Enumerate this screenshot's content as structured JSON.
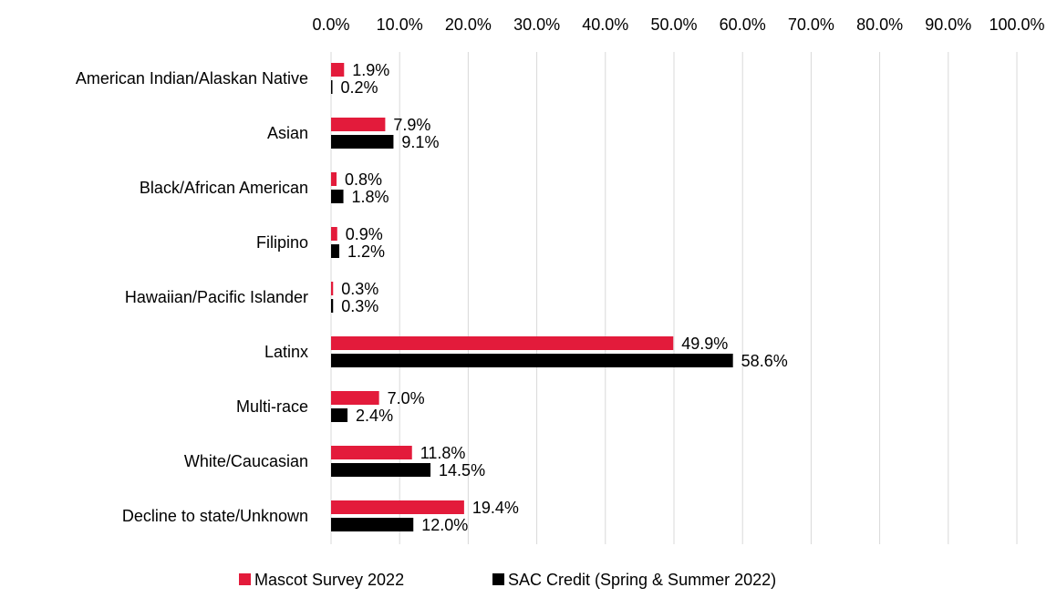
{
  "chart_data": {
    "type": "bar",
    "orientation": "horizontal",
    "categories": [
      "American Indian/Alaskan Native",
      "Asian",
      "Black/African American",
      "Filipino",
      "Hawaiian/Pacific Islander",
      "Latinx",
      "Multi-race",
      "White/Caucasian",
      "Decline to state/Unknown"
    ],
    "series": [
      {
        "name": "Mascot Survey 2022",
        "color": "#e31b3b",
        "values": [
          1.9,
          7.9,
          0.8,
          0.9,
          0.3,
          49.9,
          7.0,
          11.8,
          19.4
        ],
        "value_labels": [
          "1.9%",
          "7.9%",
          "0.8%",
          "0.9%",
          "0.3%",
          "49.9%",
          "7.0%",
          "11.8%",
          "19.4%"
        ]
      },
      {
        "name": "SAC Credit (Spring & Summer 2022)",
        "color": "#000000",
        "values": [
          0.2,
          9.1,
          1.8,
          1.2,
          0.3,
          58.6,
          2.4,
          14.5,
          12.0
        ],
        "value_labels": [
          "0.2%",
          "9.1%",
          "1.8%",
          "1.2%",
          "0.3%",
          "58.6%",
          "2.4%",
          "14.5%",
          "12.0%"
        ]
      }
    ],
    "xlim": [
      0,
      100
    ],
    "xticks": [
      {
        "value": 0,
        "label": "0.0%"
      },
      {
        "value": 10,
        "label": "10.0%"
      },
      {
        "value": 20,
        "label": "20.0%"
      },
      {
        "value": 30,
        "label": "30.0%"
      },
      {
        "value": 40,
        "label": "40.0%"
      },
      {
        "value": 50,
        "label": "50.0%"
      },
      {
        "value": 60,
        "label": "60.0%"
      },
      {
        "value": 70,
        "label": "70.0%"
      },
      {
        "value": 80,
        "label": "80.0%"
      },
      {
        "value": 90,
        "label": "90.0%"
      },
      {
        "value": 100,
        "label": "100.0%"
      }
    ],
    "grid": true,
    "legend": "bottom"
  }
}
